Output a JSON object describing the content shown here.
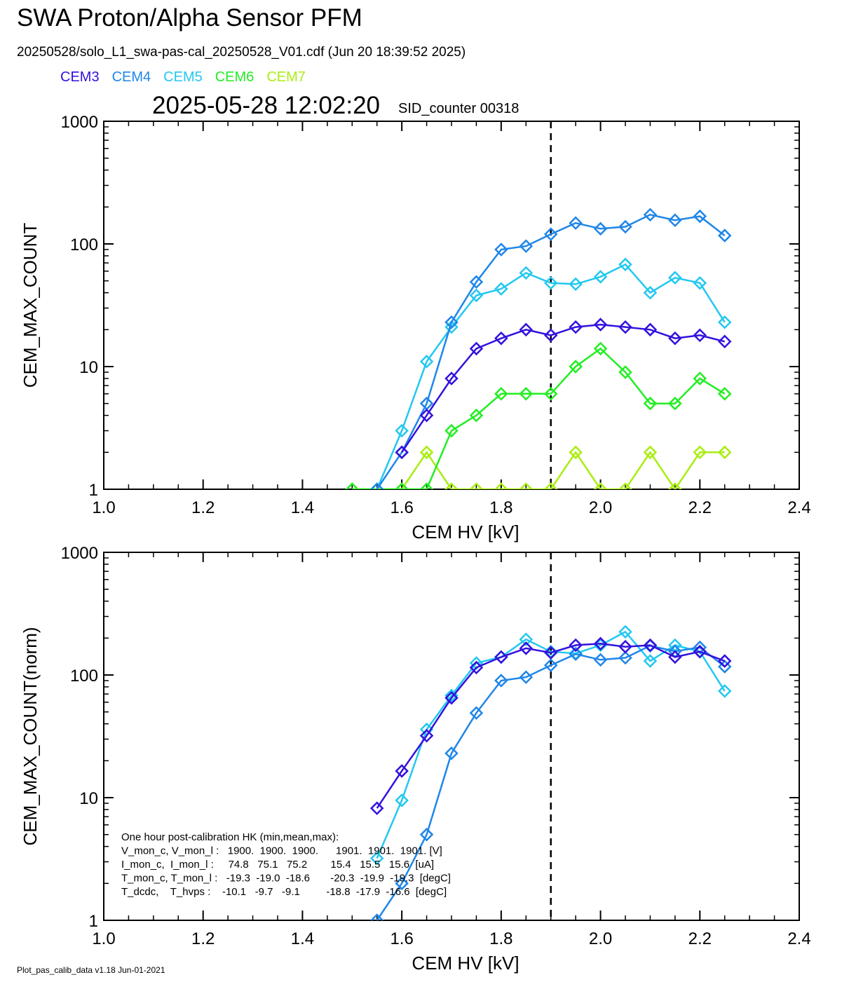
{
  "header": {
    "title": "SWA Proton/Alpha Sensor PFM",
    "file_line": "20250528/solo_L1_swa-pas-cal_20250528_V01.cdf  (Jun 20 18:39:52 2025)",
    "timestamp": "2025-05-28 12:02:20",
    "sid_counter": "SID_counter 00318"
  },
  "legend": [
    {
      "label": "CEM3",
      "color": "#3311dd"
    },
    {
      "label": "CEM4",
      "color": "#1f86e8"
    },
    {
      "label": "CEM5",
      "color": "#22c8f0"
    },
    {
      "label": "CEM6",
      "color": "#22ee22"
    },
    {
      "label": "CEM7",
      "color": "#aaee11"
    }
  ],
  "footer": "Plot_pas_calib_data v1.18 Jun-01-2021",
  "hk_box": {
    "lines": [
      "One hour post-calibration HK (min,mean,max):",
      "V_mon_c, V_mon_l :   1900.  1900.  1900.      1901.  1901.  1901. [V]",
      "I_mon_c,  I_mon_l :     74.8   75.1   75.2        15.4   15.5   15.6  [uA]",
      "T_mon_c, T_mon_l :   -19.3  -19.0  -18.6       -20.3  -19.9  -19.3  [degC]",
      "T_dcdc,    T_hvps :    -10.1   -9.7   -9.1         -18.8  -17.9  -16.6  [degC]"
    ]
  },
  "chart_data": [
    {
      "type": "line",
      "xlabel": "CEM HV [kV]",
      "ylabel": "CEM_MAX_COUNT",
      "xlim": [
        1.0,
        2.4
      ],
      "ylim": [
        1,
        1000
      ],
      "yscale": "log",
      "x_ticks": [
        "1.0",
        "1.2",
        "1.4",
        "1.6",
        "1.8",
        "2.0",
        "2.2",
        "2.4"
      ],
      "y_ticks": [
        "1",
        "10",
        "100",
        "1000"
      ],
      "vline_x": 1.9,
      "marker": "diamond",
      "series": [
        {
          "name": "CEM3",
          "color": "#3311dd",
          "x": [
            1.6,
            1.65,
            1.7,
            1.75,
            1.8,
            1.85,
            1.9,
            1.95,
            2.0,
            2.05,
            2.1,
            2.15,
            2.2,
            2.25
          ],
          "y": [
            2,
            4,
            8,
            14,
            17,
            20,
            18,
            21,
            22,
            21,
            20,
            17,
            18,
            16
          ]
        },
        {
          "name": "CEM4",
          "color": "#1f86e8",
          "x": [
            1.55,
            1.6,
            1.65,
            1.7,
            1.75,
            1.8,
            1.85,
            1.9,
            1.95,
            2.0,
            2.05,
            2.1,
            2.15,
            2.2,
            2.25
          ],
          "y": [
            1,
            2,
            5,
            23,
            49,
            90,
            96,
            120,
            148,
            133,
            138,
            173,
            156,
            168,
            117
          ]
        },
        {
          "name": "CEM5",
          "color": "#22c8f0",
          "x": [
            1.55,
            1.6,
            1.65,
            1.7,
            1.75,
            1.8,
            1.85,
            1.9,
            1.95,
            2.0,
            2.05,
            2.1,
            2.15,
            2.2,
            2.25
          ],
          "y": [
            1,
            3,
            11,
            21,
            38,
            43,
            58,
            48,
            47,
            54,
            68,
            40,
            53,
            48,
            23
          ]
        },
        {
          "name": "CEM6",
          "color": "#22ee22",
          "x": [
            1.5,
            1.55,
            1.6,
            1.65,
            1.7,
            1.75,
            1.8,
            1.85,
            1.9,
            1.95,
            2.0,
            2.05,
            2.1,
            2.15,
            2.2,
            2.25
          ],
          "y": [
            1,
            1,
            1,
            1,
            3,
            4,
            6,
            6,
            6,
            10,
            14,
            9,
            5,
            5,
            8,
            6
          ]
        },
        {
          "name": "CEM7",
          "color": "#aaee11",
          "x": [
            1.5,
            1.55,
            1.6,
            1.65,
            1.7,
            1.75,
            1.8,
            1.85,
            1.9,
            1.95,
            2.0,
            2.05,
            2.1,
            2.15,
            2.2,
            2.25
          ],
          "y": [
            1,
            1,
            1,
            2,
            1,
            1,
            1,
            1,
            1,
            2,
            1,
            1,
            2,
            1,
            2,
            2
          ]
        }
      ]
    },
    {
      "type": "line",
      "xlabel": "CEM HV [kV]",
      "ylabel": "CEM_MAX_COUNT(norm)",
      "xlim": [
        1.0,
        2.4
      ],
      "ylim": [
        1,
        1000
      ],
      "yscale": "log",
      "x_ticks": [
        "1.0",
        "1.2",
        "1.4",
        "1.6",
        "1.8",
        "2.0",
        "2.2",
        "2.4"
      ],
      "y_ticks": [
        "1",
        "10",
        "100",
        "1000"
      ],
      "vline_x": 1.9,
      "marker": "diamond",
      "series": [
        {
          "name": "CEM3",
          "color": "#3311dd",
          "x": [
            1.55,
            1.6,
            1.65,
            1.7,
            1.75,
            1.8,
            1.85,
            1.9,
            1.95,
            2.0,
            2.05,
            2.1,
            2.15,
            2.2,
            2.25
          ],
          "y": [
            8.2,
            16.5,
            32,
            65,
            115,
            140,
            165,
            152,
            175,
            180,
            170,
            175,
            140,
            155,
            130
          ]
        },
        {
          "name": "CEM4",
          "color": "#1f86e8",
          "x": [
            1.55,
            1.6,
            1.65,
            1.7,
            1.75,
            1.8,
            1.85,
            1.9,
            1.95,
            2.0,
            2.05,
            2.1,
            2.15,
            2.2,
            2.25
          ],
          "y": [
            1,
            2,
            5,
            23,
            49,
            90,
            96,
            120,
            148,
            133,
            138,
            173,
            156,
            168,
            117
          ]
        },
        {
          "name": "CEM5",
          "color": "#22c8f0",
          "x": [
            1.55,
            1.6,
            1.65,
            1.7,
            1.75,
            1.8,
            1.85,
            1.9,
            1.95,
            2.0,
            2.05,
            2.1,
            2.15,
            2.2,
            2.25
          ],
          "y": [
            3.2,
            9.5,
            36,
            68,
            125,
            140,
            195,
            155,
            150,
            175,
            225,
            130,
            175,
            155,
            74
          ]
        }
      ]
    }
  ]
}
